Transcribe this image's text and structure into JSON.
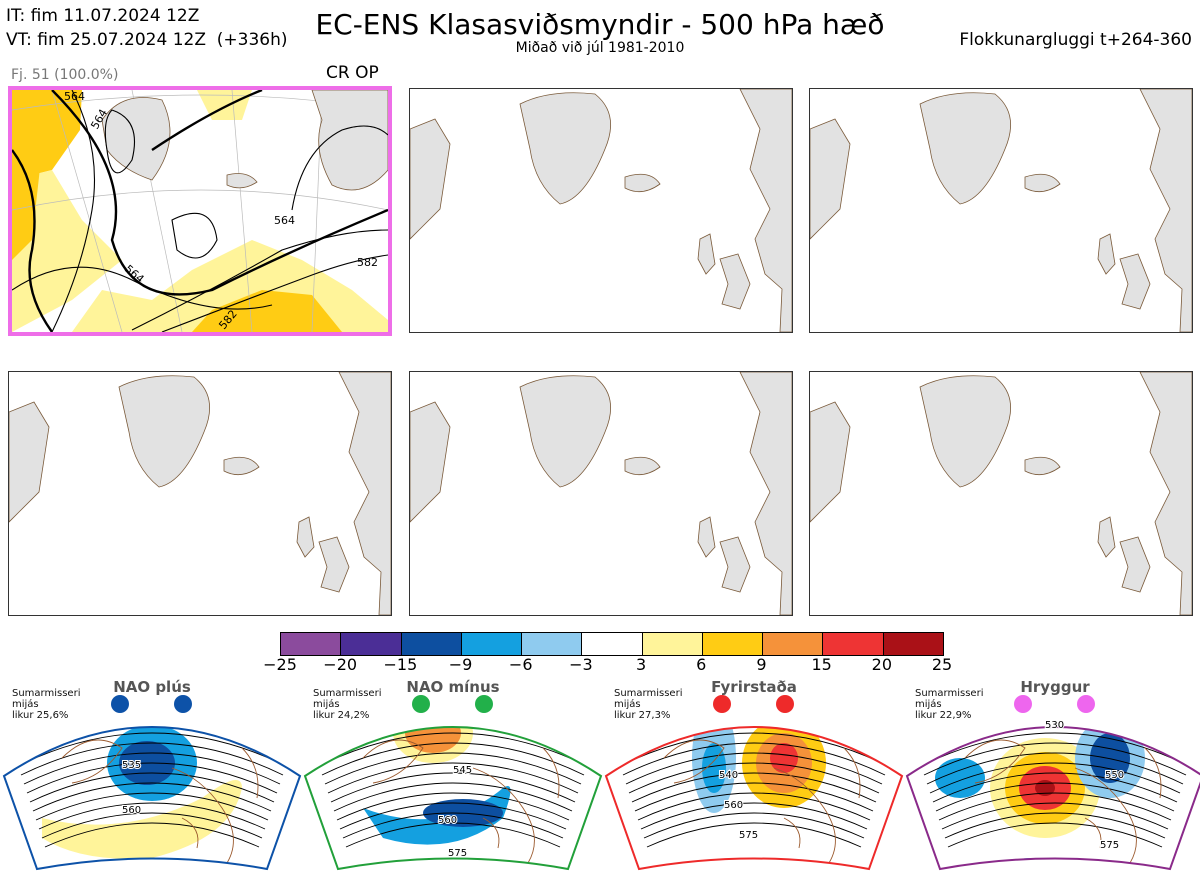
{
  "header": {
    "init_time": "IT: fim 11.07.2024 12Z",
    "valid_time": "VT: fim 25.07.2024 12Z  (+336h)",
    "title": "EC-ENS Klasasviðsmyndir - 500 hPa hæð",
    "subtitle": "Miðað við júl 1981-2010",
    "window": "Flokkunargluggi t+264-360"
  },
  "main_panel": {
    "members_label": "Fj. 51 (100.0%)",
    "tag": "CR OP",
    "contour_labels": [
      "564",
      "564",
      "564",
      "564",
      "582",
      "582"
    ]
  },
  "colorbar": {
    "ticks": [
      "−25",
      "−20",
      "−15",
      "−9",
      "−6",
      "−3",
      "3",
      "6",
      "9",
      "15",
      "20",
      "25"
    ],
    "colors": [
      "#8b4b9d",
      "#4b2e96",
      "#0d4fa0",
      "#14a0e0",
      "#8fcbef",
      "#ffffff",
      "#fff49a",
      "#ffcc14",
      "#f5923a",
      "#ee3434",
      "#aa1117"
    ]
  },
  "regimes": [
    {
      "name": "NAO plús",
      "season": "Sumarmisseri",
      "median": "mijás",
      "likur": "likur 25,6%",
      "dot_color": "#0d52a8",
      "border_color": "#0d52a8",
      "labels": [
        "535",
        "560"
      ]
    },
    {
      "name": "NAO mínus",
      "season": "Sumarmisseri",
      "median": "mijás",
      "likur": "likur 24,2%",
      "dot_color": "#22b04a",
      "border_color": "#22a03a",
      "labels": [
        "545",
        "560",
        "575"
      ]
    },
    {
      "name": "Fyrirstaða",
      "season": "Sumarmisseri",
      "median": "mijás",
      "likur": "likur 27,3%",
      "dot_color": "#ee2a2a",
      "border_color": "#ee2a2a",
      "labels": [
        "540",
        "560",
        "575"
      ]
    },
    {
      "name": "Hryggur",
      "season": "Sumarmisseri",
      "median": "mijás",
      "likur": "likur 22,9%",
      "dot_color": "#ee66ee",
      "border_color": "#8a2a8a",
      "labels": [
        "530",
        "550",
        "575"
      ]
    }
  ]
}
